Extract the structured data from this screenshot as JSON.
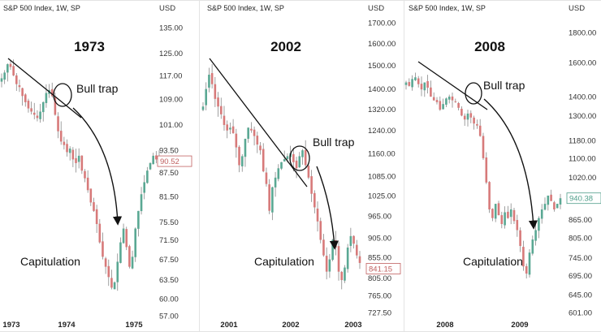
{
  "chart_data": [
    {
      "type": "candlestick",
      "header": "S&P 500 Index, 1W, SP",
      "currency": "USD",
      "title": "1973",
      "yscale": "log",
      "ylim": [
        57,
        135
      ],
      "yticks": [
        "135.00",
        "125.00",
        "117.00",
        "109.00",
        "101.00",
        "93.50",
        "87.50",
        "81.50",
        "75.50",
        "71.50",
        "67.50",
        "63.50",
        "60.00",
        "57.00"
      ],
      "xticks": [
        "1973",
        "1974",
        "1975"
      ],
      "last_price": "90.52",
      "last_color": "#c06060",
      "closes": [
        116,
        118,
        121,
        120,
        117,
        114,
        113,
        110,
        108,
        106,
        105,
        104,
        103,
        105,
        108,
        111,
        112,
        110,
        104,
        99,
        96,
        95,
        93,
        94,
        91,
        90,
        92,
        88,
        86,
        83,
        80,
        78,
        75,
        71,
        68,
        66,
        64,
        62,
        63,
        67,
        71,
        74,
        70,
        66,
        68,
        74,
        78,
        82,
        85,
        88,
        90,
        92,
        91,
        90.52
      ],
      "annotations": {
        "trap": "Bull trap",
        "bottom": "Capitulation"
      }
    },
    {
      "type": "candlestick",
      "header": "S&P 500 Index, 1W, SP",
      "currency": "USD",
      "title": "2002",
      "yscale": "log",
      "ylim": [
        727.5,
        1700
      ],
      "yticks": [
        "1700.00",
        "1600.00",
        "1500.00",
        "1400.00",
        "1320.00",
        "1240.00",
        "1160.00",
        "1085.00",
        "1025.00",
        "965.00",
        "905.00",
        "855.00",
        "805.00",
        "765.00",
        "727.50"
      ],
      "xticks": [
        "2001",
        "2002",
        "2003"
      ],
      "last_price": "841.15",
      "last_color": "#c06060",
      "closes": [
        1330,
        1400,
        1460,
        1420,
        1360,
        1330,
        1300,
        1260,
        1240,
        1250,
        1230,
        1180,
        1120,
        1150,
        1210,
        1250,
        1240,
        1220,
        1190,
        1170,
        1100,
        1060,
        980,
        1050,
        1080,
        1110,
        1130,
        1140,
        1150,
        1160,
        1130,
        1110,
        1150,
        1170,
        1120,
        1080,
        1030,
        990,
        950,
        900,
        860,
        820,
        850,
        900,
        880,
        820,
        800,
        830,
        880,
        910,
        890,
        860,
        841.15
      ],
      "annotations": {
        "trap": "Bull trap",
        "bottom": "Capitulation"
      }
    },
    {
      "type": "candlestick",
      "header": "S&P 500 Index, 1W, SP",
      "currency": "USD",
      "title": "2008",
      "yscale": "log",
      "ylim": [
        601,
        1800
      ],
      "yticks": [
        "1800.00",
        "1600.00",
        "1400.00",
        "1300.00",
        "1180.00",
        "1100.00",
        "1020.00",
        "865.00",
        "805.00",
        "745.00",
        "695.00",
        "645.00",
        "601.00"
      ],
      "xticks": [
        "2008",
        "2009"
      ],
      "last_price": "940.38",
      "last_color": "#4f9e8a",
      "closes": [
        1480,
        1460,
        1500,
        1510,
        1470,
        1440,
        1480,
        1450,
        1400,
        1380,
        1370,
        1330,
        1360,
        1390,
        1400,
        1380,
        1370,
        1340,
        1300,
        1280,
        1310,
        1290,
        1260,
        1250,
        1200,
        1100,
        1000,
        900,
        870,
        920,
        880,
        850,
        890,
        870,
        900,
        860,
        830,
        780,
        720,
        700,
        760,
        800,
        830,
        870,
        900,
        920,
        950,
        930,
        900,
        920,
        940.38
      ],
      "annotations": {
        "trap": "Bull trap",
        "bottom": "Capitulation"
      }
    }
  ]
}
